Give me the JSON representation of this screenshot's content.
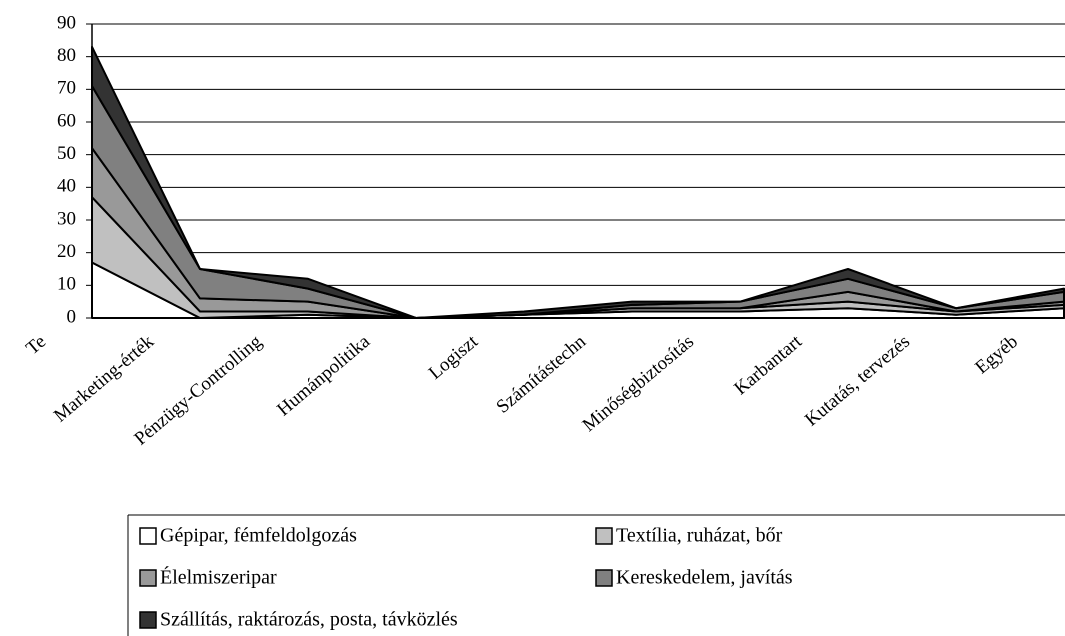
{
  "chart_data": {
    "type": "stacked_area",
    "categories": [
      "Te",
      "Marketing-érték",
      "Pénzügy-Controlling",
      "Humánpolitika",
      "Logiszt",
      "Számítástechn",
      "Minőségbiztosítás",
      "Karbantart",
      "Kutatás, tervezés",
      "Egyéb"
    ],
    "series": [
      {
        "name": "Gépipar, fémfeldolgozás",
        "color": "#ffffff",
        "values": [
          17,
          0,
          1,
          0,
          1,
          2,
          2,
          3,
          1,
          3
        ]
      },
      {
        "name": "Textília, ruházat, bőr",
        "color": "#c0c0c0",
        "values": [
          20,
          2,
          1,
          0,
          0,
          1,
          1,
          2,
          1,
          1
        ]
      },
      {
        "name": "Élelmiszeripar",
        "color": "#999999",
        "values": [
          15,
          4,
          3,
          0,
          0,
          0,
          0,
          3,
          0,
          1
        ]
      },
      {
        "name": "Kereskedelem, javítás",
        "color": "#808080",
        "values": [
          19,
          9,
          4,
          0,
          0,
          1,
          2,
          4,
          1,
          3
        ]
      },
      {
        "name": "Szállítás, raktározás, posta, távközlés",
        "color": "#333333",
        "values": [
          12,
          0,
          3,
          0,
          1,
          1,
          0,
          3,
          0,
          1
        ]
      }
    ],
    "ylim": [
      0,
      90
    ],
    "yticks": [
      0,
      10,
      20,
      30,
      40,
      50,
      60,
      70,
      80,
      90
    ],
    "grid": true,
    "legend": "bottom"
  }
}
